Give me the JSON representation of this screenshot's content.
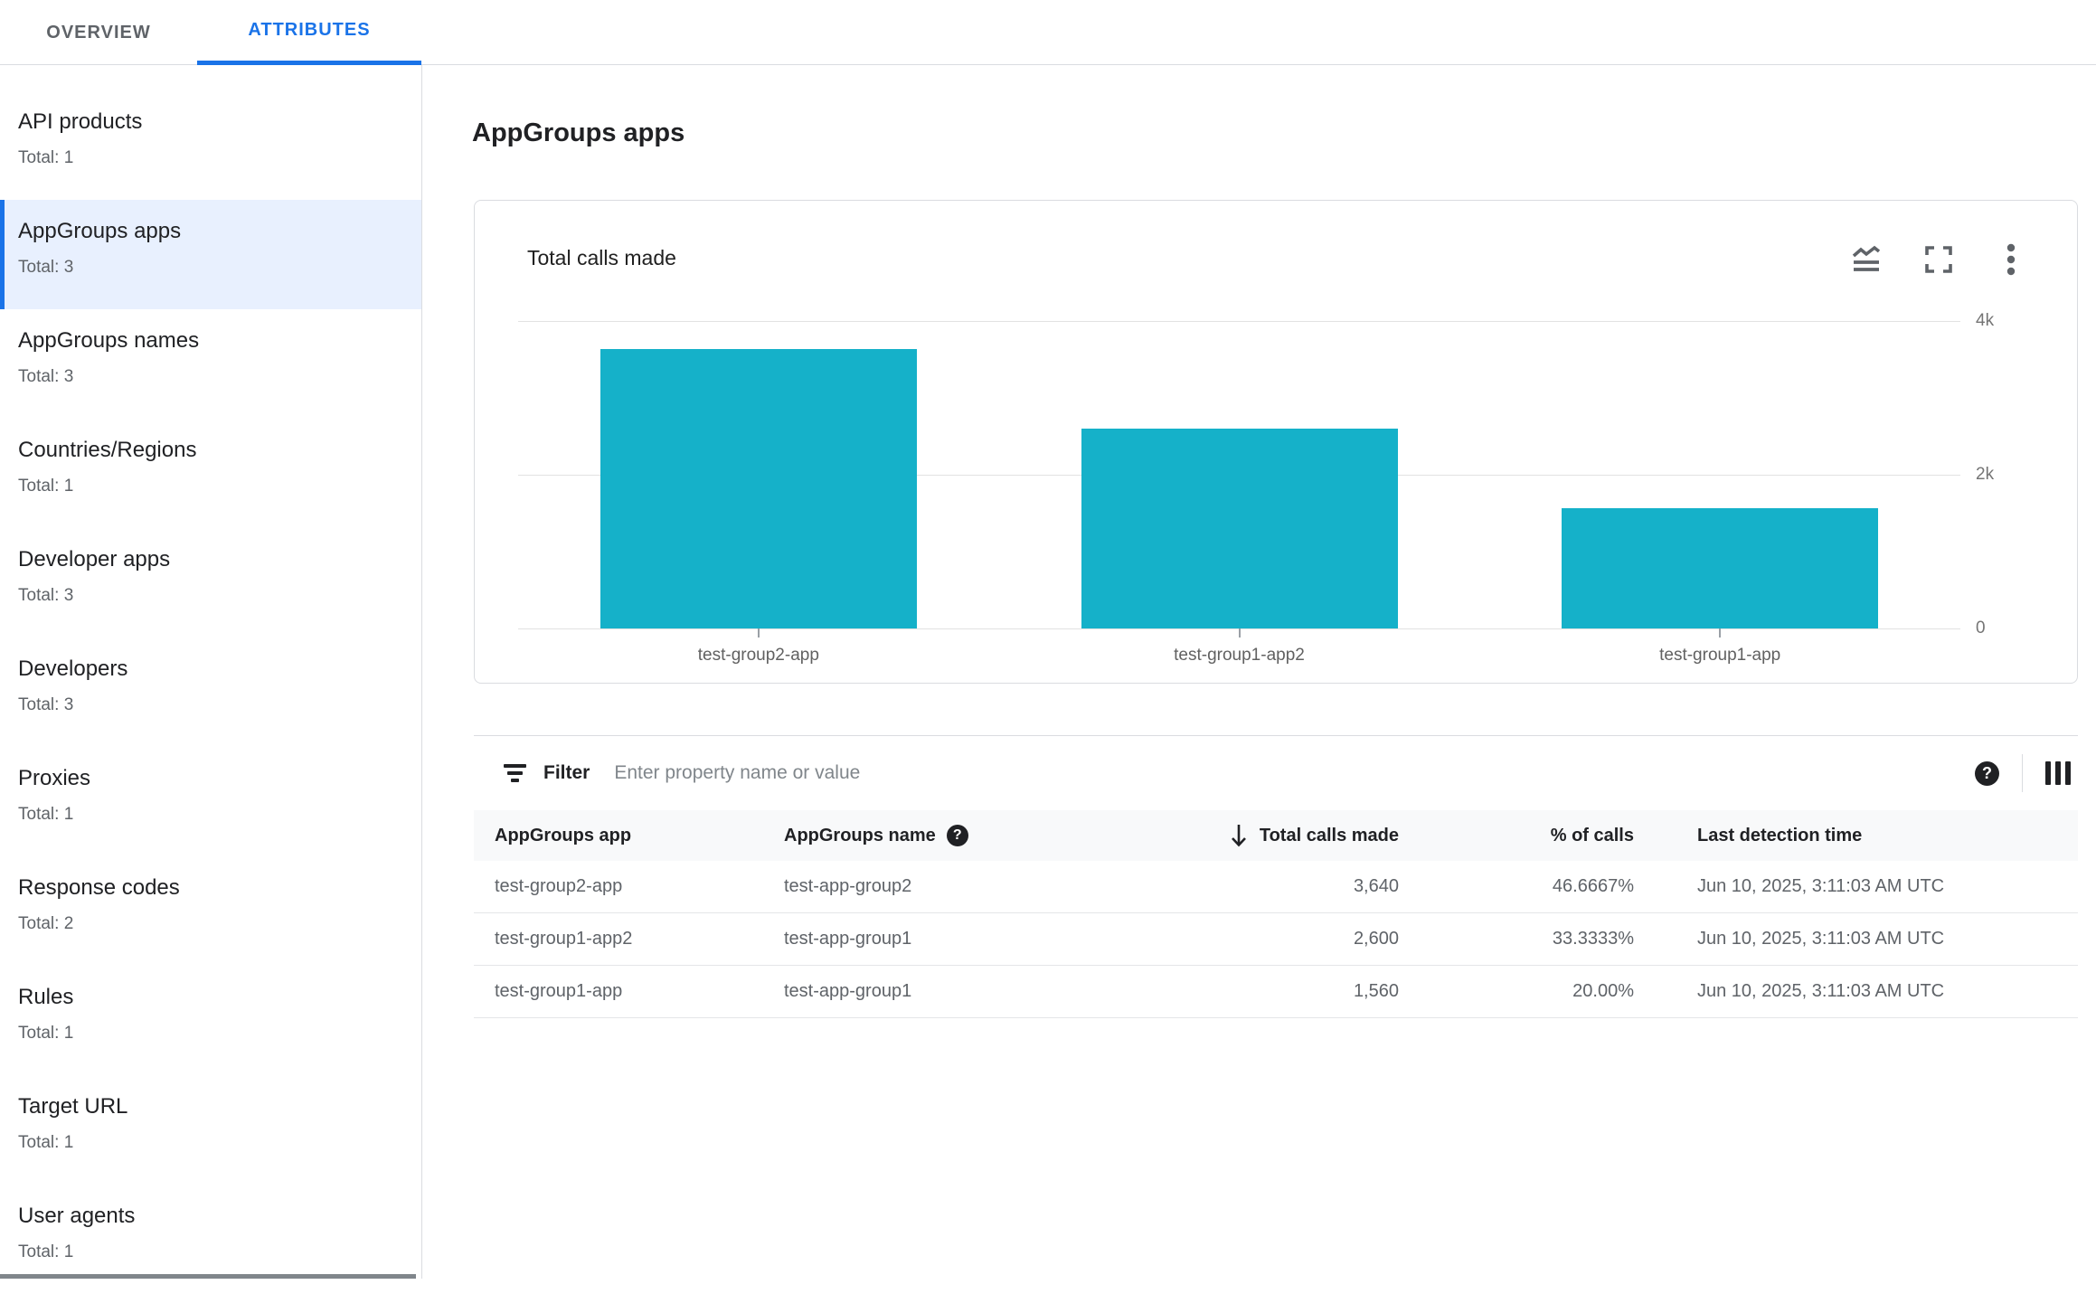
{
  "tabs": {
    "overview": "OVERVIEW",
    "attributes": "ATTRIBUTES"
  },
  "sidebar": {
    "items": [
      {
        "label": "API products",
        "total": "Total: 1"
      },
      {
        "label": "AppGroups apps",
        "total": "Total: 3"
      },
      {
        "label": "AppGroups names",
        "total": "Total: 3"
      },
      {
        "label": "Countries/Regions",
        "total": "Total: 1"
      },
      {
        "label": "Developer apps",
        "total": "Total: 3"
      },
      {
        "label": "Developers",
        "total": "Total: 3"
      },
      {
        "label": "Proxies",
        "total": "Total: 1"
      },
      {
        "label": "Response codes",
        "total": "Total: 2"
      },
      {
        "label": "Rules",
        "total": "Total: 1"
      },
      {
        "label": "Target URL",
        "total": "Total: 1"
      },
      {
        "label": "User agents",
        "total": "Total: 1"
      }
    ],
    "selected_index": 1
  },
  "page": {
    "title": "AppGroups apps"
  },
  "chart_card": {
    "title": "Total calls made",
    "icons": [
      "chart-type-icon",
      "fullscreen-icon",
      "more-options-icon"
    ],
    "accent_color": "#15b1c9"
  },
  "chart_data": {
    "type": "bar",
    "title": "Total calls made",
    "categories": [
      "test-group2-app",
      "test-group1-app2",
      "test-group1-app"
    ],
    "values": [
      3640,
      2600,
      1560
    ],
    "xlabel": "",
    "ylabel": "",
    "ylim": [
      0,
      4000
    ],
    "ytick_labels_top_to_bottom": [
      "4k",
      "2k",
      "0"
    ],
    "grid": true,
    "bar_color": "#15b1c9",
    "legend": false
  },
  "filter": {
    "label": "Filter",
    "placeholder": "Enter property name or value"
  },
  "table": {
    "columns": [
      "AppGroups app",
      "AppGroups name",
      "Total calls made",
      "% of calls",
      "Last detection time"
    ],
    "sorted_column": "Total calls made",
    "rows": [
      {
        "app": "test-group2-app",
        "name": "test-app-group2",
        "calls": "3,640",
        "pct": "46.6667%",
        "time": "Jun 10, 2025, 3:11:03 AM UTC"
      },
      {
        "app": "test-group1-app2",
        "name": "test-app-group1",
        "calls": "2,600",
        "pct": "33.3333%",
        "time": "Jun 10, 2025, 3:11:03 AM UTC"
      },
      {
        "app": "test-group1-app",
        "name": "test-app-group1",
        "calls": "1,560",
        "pct": "20.00%",
        "time": "Jun 10, 2025, 3:11:03 AM UTC"
      }
    ]
  }
}
